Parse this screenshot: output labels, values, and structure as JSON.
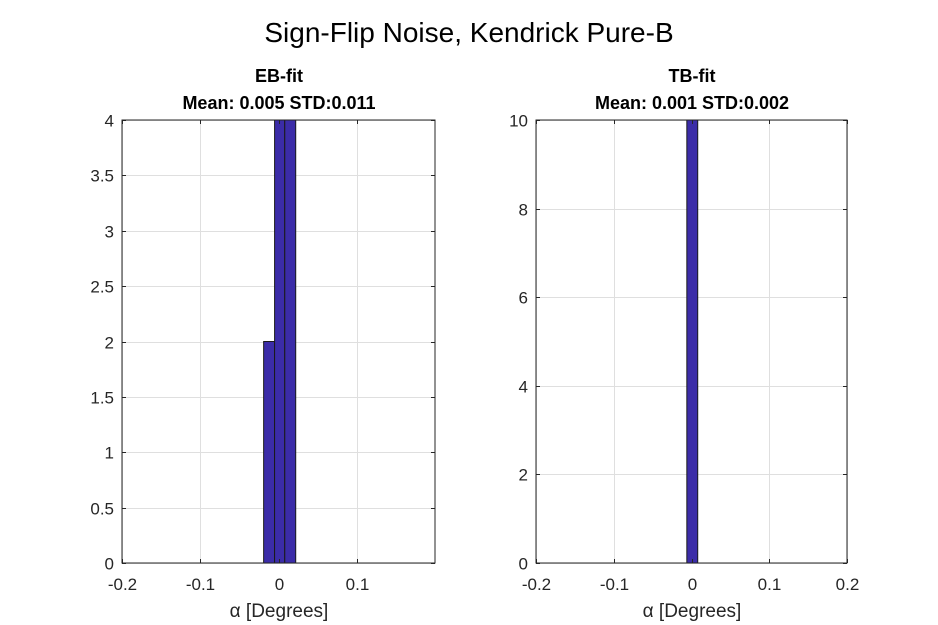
{
  "figure": {
    "title": "Sign-Flip Noise, Kendrick Pure-B"
  },
  "colors": {
    "bar_fill": "#3b2ca8",
    "bar_edge": "#1a1a1a",
    "grid": "#dfdfdf",
    "axis": "#262626"
  },
  "chart_data": [
    {
      "type": "bar",
      "title": "EB-fit",
      "subtitle": "Mean: 0.005 STD:0.011",
      "xlabel": "α [Degrees]",
      "ylabel": "",
      "xlim": [
        -0.2,
        0.2
      ],
      "ylim": [
        0,
        4
      ],
      "grid": true,
      "xticks": [
        -0.2,
        -0.1,
        0,
        0.1
      ],
      "xtick_labels": [
        "-0.2",
        "-0.1",
        "0",
        "0.1"
      ],
      "yticks": [
        0,
        0.5,
        1,
        1.5,
        2,
        2.5,
        3,
        3.5,
        4
      ],
      "ytick_labels": [
        "0",
        "0.5",
        "1",
        "1.5",
        "2",
        "2.5",
        "3",
        "3.5",
        "4"
      ],
      "bin_edges": [
        -0.019,
        -0.005,
        0.008,
        0.022
      ],
      "values": [
        2,
        4,
        4
      ]
    },
    {
      "type": "bar",
      "title": "TB-fit",
      "subtitle": "Mean: 0.001 STD:0.002",
      "xlabel": "α [Degrees]",
      "ylabel": "",
      "xlim": [
        -0.2,
        0.2
      ],
      "ylim": [
        0,
        10
      ],
      "grid": true,
      "xticks": [
        -0.2,
        -0.1,
        0,
        0.1,
        0.2
      ],
      "xtick_labels": [
        "-0.2",
        "-0.1",
        "0",
        "0.1",
        "0.2"
      ],
      "yticks": [
        0,
        2,
        4,
        6,
        8,
        10
      ],
      "ytick_labels": [
        "0",
        "2",
        "4",
        "6",
        "8",
        "10"
      ],
      "bin_edges": [
        -0.006,
        0.008
      ],
      "values": [
        10
      ]
    }
  ]
}
